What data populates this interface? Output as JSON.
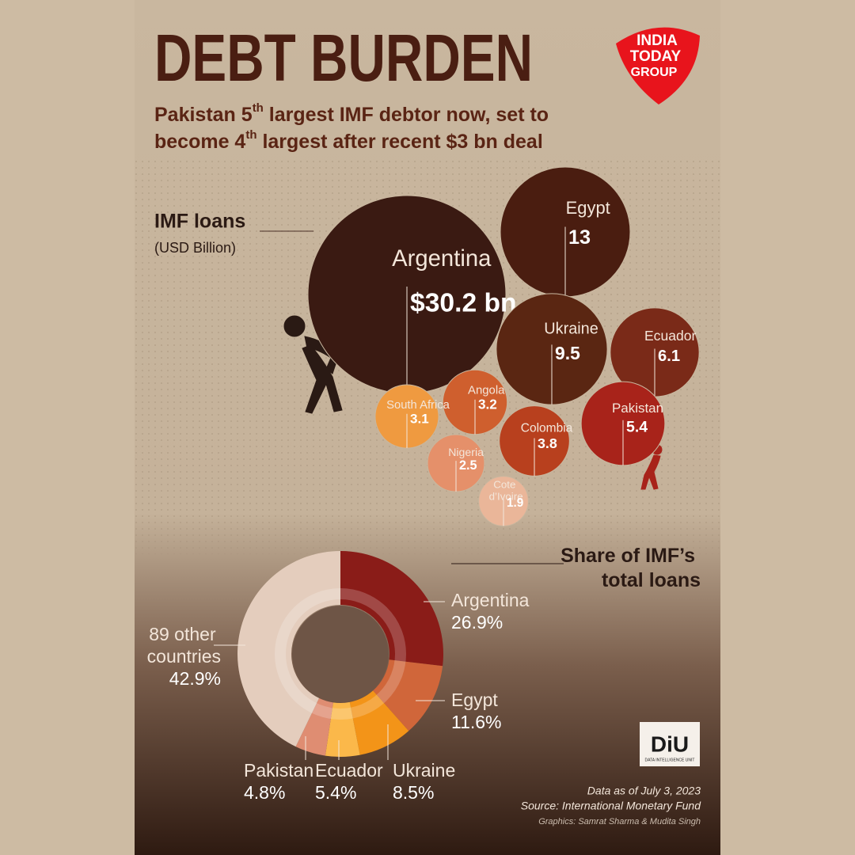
{
  "header": {
    "title": "DEBT BURDEN",
    "subtitle_lines": [
      [
        "Pakistan 5",
        "th",
        " largest IMF debtor now, set to"
      ],
      [
        "become 4",
        "th",
        " largest after recent $3 bn deal"
      ]
    ],
    "logo": [
      "INDIA",
      "TODAY",
      "GROUP"
    ]
  },
  "chart_data": [
    {
      "type": "bubble",
      "title": "IMF loans",
      "subtitle": "(USD Billion)",
      "categories": [
        "Argentina",
        "Egypt",
        "Ukraine",
        "Ecuador",
        "Pakistan",
        "Colombia",
        "Angola",
        "South Africa",
        "Nigeria",
        "Cote d’Ivoire"
      ],
      "values": [
        30.2,
        13,
        9.5,
        6.1,
        5.4,
        3.8,
        3.2,
        3.1,
        2.5,
        1.9
      ],
      "value_labels": [
        "$30.2 bn",
        "13",
        "9.5",
        "6.1",
        "5.4",
        "3.8",
        "3.2",
        "3.1",
        "2.5",
        "1.9"
      ],
      "colors": [
        "#3a1a12",
        "#4a1d10",
        "#5a2612",
        "#7a2a18",
        "#a8231a",
        "#b8401e",
        "#cf5f2e",
        "#ef9a40",
        "#e5906a",
        "#eab699"
      ]
    },
    {
      "type": "donut",
      "title": "Share of IMF’s total loans",
      "categories": [
        "Argentina",
        "Egypt",
        "Ukraine",
        "Ecuador",
        "Pakistan",
        "89 other countries"
      ],
      "values": [
        26.9,
        11.6,
        8.5,
        5.4,
        4.8,
        42.9
      ],
      "value_labels": [
        "26.9%",
        "11.6%",
        "8.5%",
        "5.4%",
        "4.8%",
        "42.9%"
      ],
      "colors": [
        "#8a1c18",
        "#d0663a",
        "#f39418",
        "#fbb84a",
        "#df8d72",
        "#e4cdbd"
      ]
    }
  ],
  "footer": {
    "brand": "DiU",
    "brand_sub": "DATA INTELLIGENCE UNIT",
    "date": "Data as of July 3, 2023",
    "source": "Source: International Monetary Fund",
    "credit": "Graphics: Samrat Sharma & Mudita Singh"
  }
}
